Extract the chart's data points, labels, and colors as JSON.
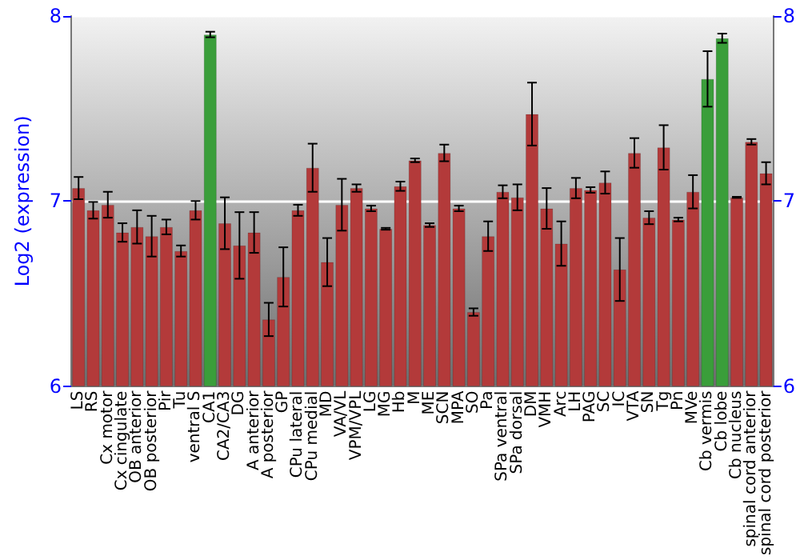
{
  "chart_data": {
    "type": "bar",
    "ylabel": "Log2 (expression)",
    "categories": [
      "LS",
      "RS",
      "Cx motor",
      "Cx cingulate",
      "OB anterior",
      "OB posterior",
      "Pir",
      "Tu",
      "ventral S",
      "CA1",
      "CA2/CA3",
      "DG",
      "A anterior",
      "A posterior",
      "GP",
      "CPu lateral",
      "CPu medial",
      "MD",
      "VA/VL",
      "VPM/VPL",
      "LG",
      "MG",
      "Hb",
      "M",
      "ME",
      "SCN",
      "MPA",
      "SO",
      "Pa",
      "SPa ventral",
      "SPa dorsal",
      "DM",
      "VMH",
      "Arc",
      "LH",
      "PAG",
      "SC",
      "IC",
      "VTA",
      "SN",
      "Tg",
      "Pn",
      "MVe",
      "Cb vermis",
      "Cb lobe",
      "Cb nucleus",
      "spinal cord anterior",
      "spinal cord posterior"
    ],
    "values": [
      7.07,
      6.95,
      6.98,
      6.83,
      6.86,
      6.81,
      6.86,
      6.73,
      6.95,
      7.9,
      6.88,
      6.76,
      6.83,
      6.36,
      6.59,
      6.95,
      7.18,
      6.67,
      6.98,
      7.07,
      6.96,
      6.85,
      7.08,
      7.22,
      6.87,
      7.26,
      6.96,
      6.4,
      6.81,
      7.05,
      7.02,
      7.47,
      6.96,
      6.77,
      7.07,
      7.06,
      7.1,
      6.63,
      7.26,
      6.91,
      7.29,
      6.9,
      7.05,
      7.66,
      7.88,
      7.02,
      7.32,
      7.15
    ],
    "errors": [
      0.06,
      0.045,
      0.07,
      0.05,
      0.09,
      0.11,
      0.04,
      0.03,
      0.05,
      0.015,
      0.14,
      0.18,
      0.11,
      0.09,
      0.16,
      0.03,
      0.13,
      0.13,
      0.14,
      0.02,
      0.015,
      0.005,
      0.025,
      0.01,
      0.01,
      0.045,
      0.015,
      0.02,
      0.08,
      0.035,
      0.07,
      0.17,
      0.11,
      0.12,
      0.055,
      0.015,
      0.06,
      0.17,
      0.08,
      0.035,
      0.12,
      0.01,
      0.09,
      0.15,
      0.025,
      0.003,
      0.015,
      0.06
    ],
    "colors": [
      "#b33a3a",
      "#b33a3a",
      "#b33a3a",
      "#b33a3a",
      "#b33a3a",
      "#b33a3a",
      "#b33a3a",
      "#b33a3a",
      "#b33a3a",
      "#3a9e3a",
      "#b33a3a",
      "#b33a3a",
      "#b33a3a",
      "#b33a3a",
      "#b33a3a",
      "#b33a3a",
      "#b33a3a",
      "#b33a3a",
      "#b33a3a",
      "#b33a3a",
      "#b33a3a",
      "#b33a3a",
      "#b33a3a",
      "#b33a3a",
      "#b33a3a",
      "#b33a3a",
      "#b33a3a",
      "#b33a3a",
      "#b33a3a",
      "#b33a3a",
      "#b33a3a",
      "#b33a3a",
      "#b33a3a",
      "#b33a3a",
      "#b33a3a",
      "#b33a3a",
      "#b33a3a",
      "#b33a3a",
      "#b33a3a",
      "#b33a3a",
      "#b33a3a",
      "#b33a3a",
      "#b33a3a",
      "#3a9e3a",
      "#3a9e3a",
      "#b33a3a",
      "#b33a3a",
      "#b33a3a"
    ],
    "ylim": [
      6,
      8
    ],
    "yticks": [
      6,
      7,
      8
    ],
    "y2lim": [
      6,
      8
    ],
    "y2ticks": [
      6,
      7,
      8
    ],
    "grid": "y"
  }
}
